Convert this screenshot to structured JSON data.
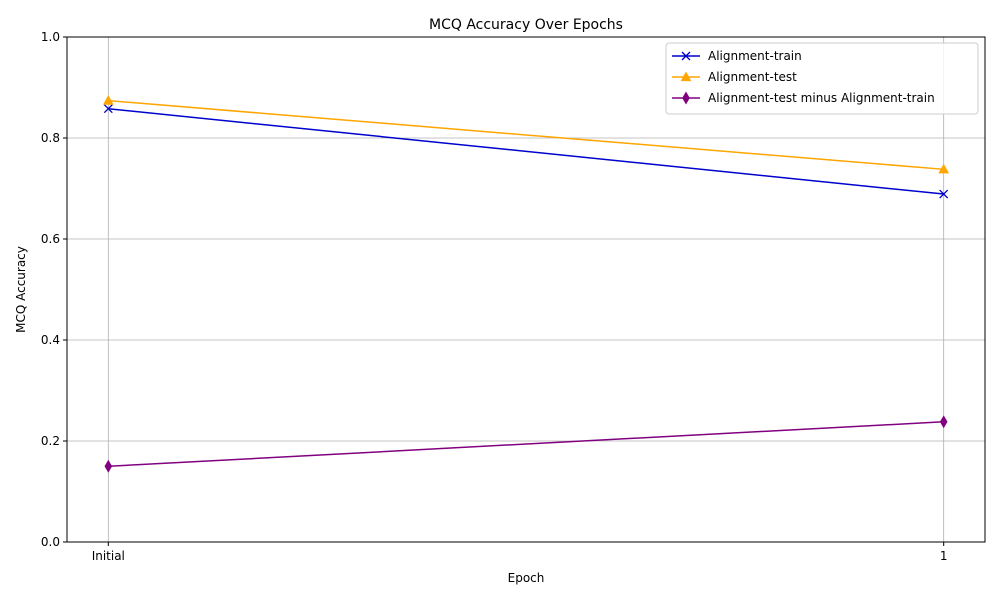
{
  "chart_data": {
    "type": "line",
    "title": "MCQ Accuracy Over Epochs",
    "xlabel": "Epoch",
    "ylabel": "MCQ Accuracy",
    "categories": [
      "Initial",
      "1"
    ],
    "ylim": [
      0.0,
      1.0
    ],
    "yticks": [
      "0.0",
      "0.2",
      "0.4",
      "0.6",
      "0.8",
      "1.0"
    ],
    "grid": true,
    "legend_position": "top-right",
    "series": [
      {
        "name": "Alignment-train",
        "values": [
          0.858,
          0.689
        ],
        "color": "#0000cd",
        "marker": "x"
      },
      {
        "name": "Alignment-test",
        "values": [
          0.874,
          0.738
        ],
        "color": "#ffa500",
        "marker": "triangle"
      },
      {
        "name": "Alignment-test minus Alignment-train",
        "values": [
          0.15,
          0.238
        ],
        "color": "#800080",
        "marker": "thin-diamond"
      }
    ]
  }
}
